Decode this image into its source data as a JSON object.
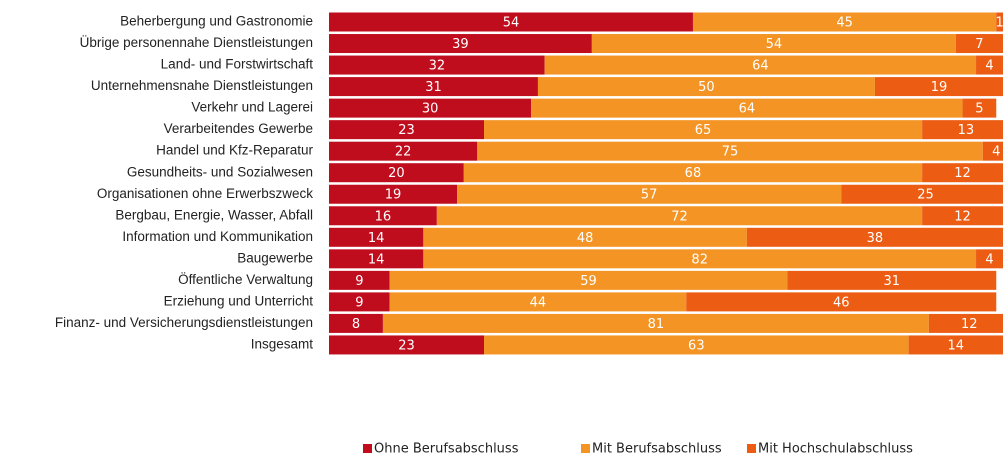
{
  "chart_data": {
    "type": "stacked-barh",
    "categories": [
      "Beherbergung und Gastronomie",
      "Übrige personennahe Dienstleistungen",
      "Land- und Forstwirtschaft",
      "Unternehmensnahe Dienstleistungen",
      "Verkehr und Lagerei",
      "Verarbeitendes Gewerbe",
      "Handel und Kfz-Reparatur",
      "Gesundheits- und  Sozialwesen",
      "Organisationen ohne Erwerbszweck",
      "Bergbau, Energie, Wasser, Abfall",
      "Information und Kommunikation",
      "Baugewerbe",
      "Öffentliche Verwaltung",
      "Erziehung und Unterricht",
      "Finanz- und Versicherungsdienstleistungen",
      "Insgesamt"
    ],
    "series": [
      {
        "name": "Ohne Berufsabschluss",
        "color": "#c00d1e",
        "values": [
          54,
          39,
          32,
          31,
          30,
          23,
          22,
          20,
          19,
          16,
          14,
          14,
          9,
          9,
          8,
          23
        ]
      },
      {
        "name": "Mit Berufsabschluss",
        "color": "#f39425",
        "values": [
          45,
          54,
          64,
          50,
          64,
          65,
          75,
          68,
          57,
          72,
          48,
          82,
          59,
          44,
          81,
          63
        ]
      },
      {
        "name": "Mit Hochschulabschluss",
        "color": "#ec5c12",
        "values": [
          1,
          7,
          4,
          19,
          5,
          13,
          4,
          12,
          25,
          12,
          38,
          4,
          31,
          46,
          12,
          14
        ]
      }
    ],
    "xlim": [
      0,
      100
    ],
    "legend": "bottom"
  }
}
